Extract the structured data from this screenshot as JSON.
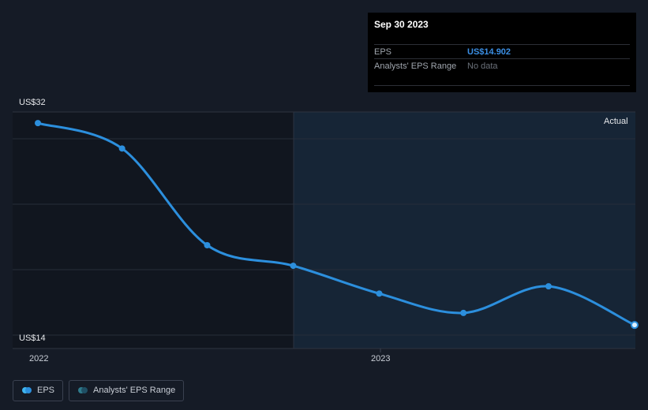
{
  "tooltip": {
    "date": "Sep 30 2023",
    "rows": [
      {
        "label": "EPS",
        "value": "US$14.902"
      },
      {
        "label": "Analysts' EPS Range",
        "value": "No data"
      }
    ]
  },
  "region_label": "Actual",
  "legend": [
    {
      "label": "EPS",
      "colors": [
        "#3fb5ef",
        "#2c8fdd"
      ]
    },
    {
      "label": "Analysts' EPS Range",
      "colors": [
        "#2f7b8c",
        "#1f4f64"
      ]
    }
  ],
  "colors": {
    "line": "#2c8fdd",
    "background": "#151b26",
    "actual_region": "#162536",
    "past_region": "#11161f"
  },
  "chart_data": {
    "type": "line",
    "title": "",
    "xlabel": "",
    "ylabel": "",
    "y_tick_labels": [
      "US$32",
      "US$14"
    ],
    "x_tick_labels": [
      "2022",
      "2023"
    ],
    "ylim": [
      14,
      32
    ],
    "series": [
      {
        "name": "EPS",
        "points": [
          {
            "x": "2021-12-31",
            "y": 31.6
          },
          {
            "x": "2022-03-31",
            "y": 29.5
          },
          {
            "x": "2022-06-30",
            "y": 21.5
          },
          {
            "x": "2022-09-30",
            "y": 19.8
          },
          {
            "x": "2022-12-31",
            "y": 17.5
          },
          {
            "x": "2023-03-31",
            "y": 15.9
          },
          {
            "x": "2023-06-30",
            "y": 18.1
          },
          {
            "x": "2023-09-30",
            "y": 14.902
          }
        ]
      }
    ]
  }
}
